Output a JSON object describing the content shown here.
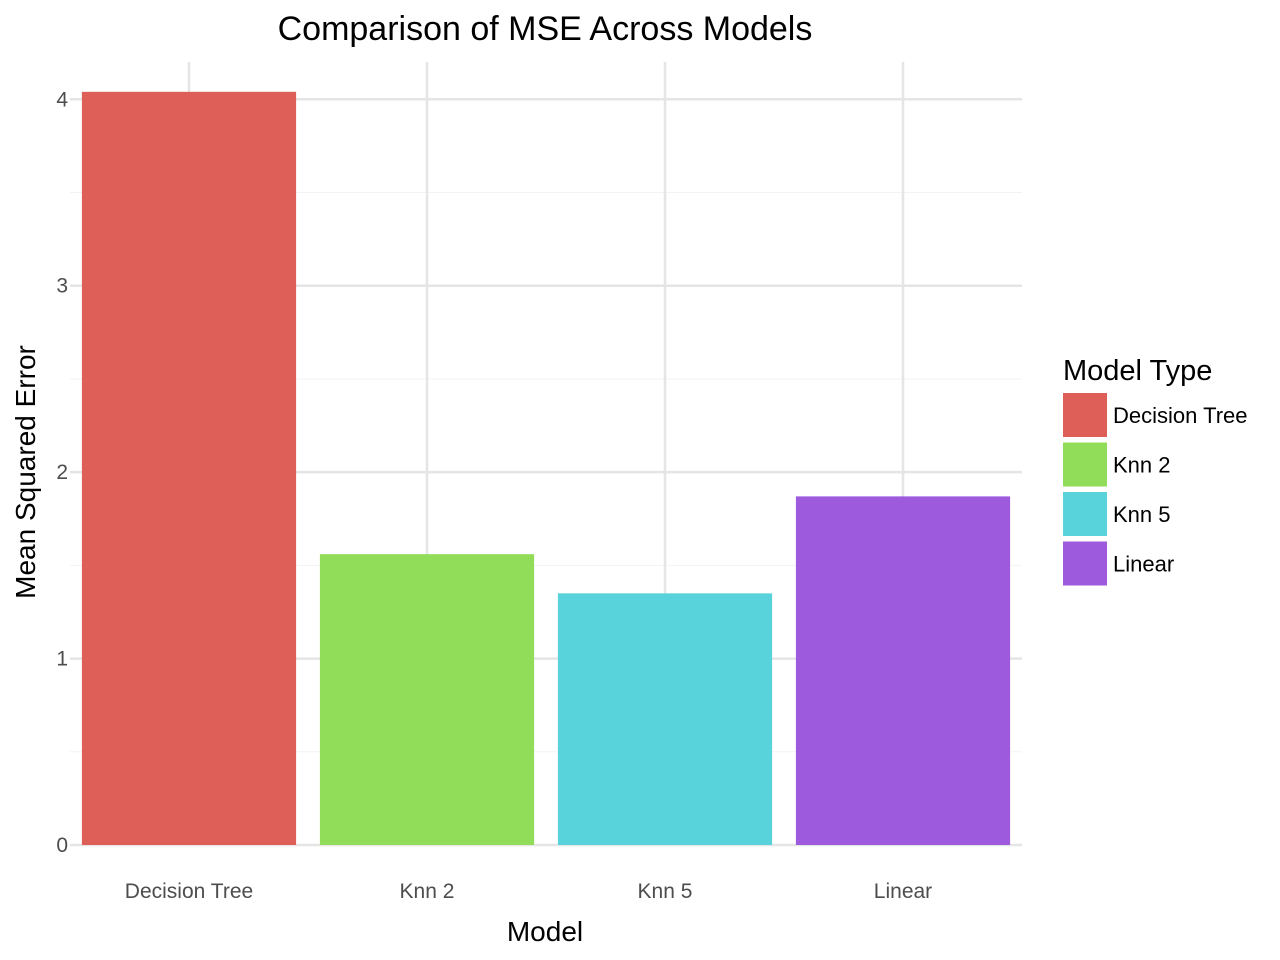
{
  "chart_data": {
    "type": "bar",
    "title": "Comparison of MSE Across Models",
    "xlabel": "Model",
    "ylabel": "Mean Squared Error",
    "categories": [
      "Decision Tree",
      "Knn 2",
      "Knn 5",
      "Linear"
    ],
    "values": [
      4.04,
      1.56,
      1.35,
      1.87
    ],
    "colors": [
      "#dd5f57",
      "#91dc58",
      "#58d3db",
      "#9e5adc"
    ],
    "ylim": [
      0,
      4.2
    ],
    "yticks": [
      0,
      1,
      2,
      3,
      4
    ],
    "grid": true,
    "legend": {
      "title": "Model Type",
      "placement": "right",
      "entries": [
        "Decision Tree",
        "Knn 2",
        "Knn 5",
        "Linear"
      ]
    }
  }
}
